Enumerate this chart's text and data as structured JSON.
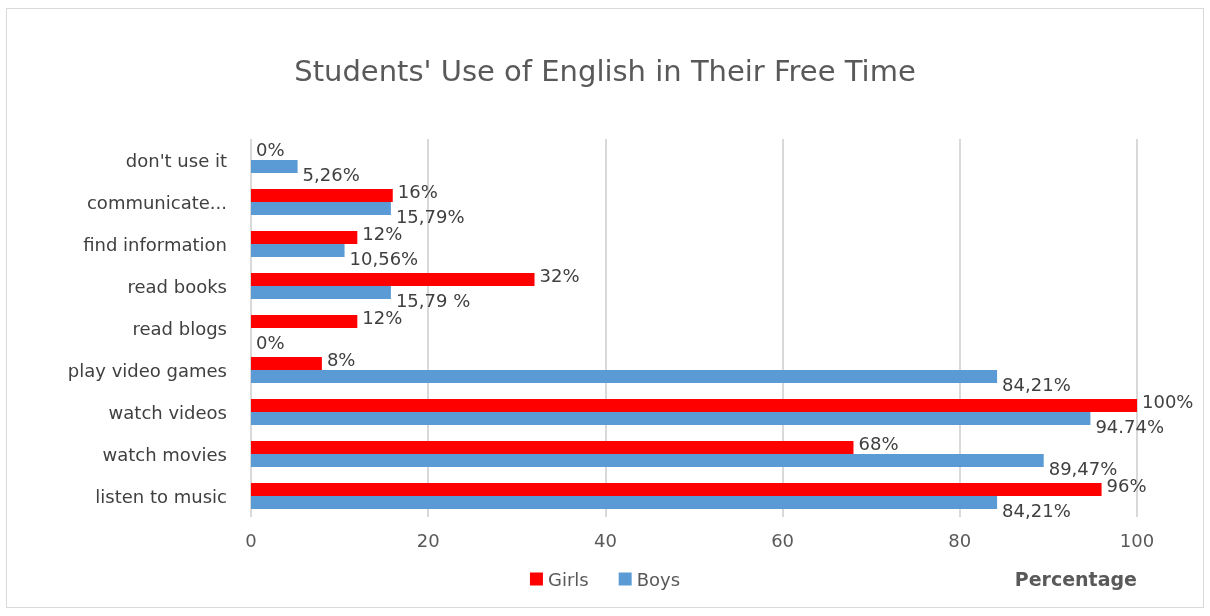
{
  "chart_data": {
    "type": "bar",
    "orientation": "horizontal",
    "title": "Students' Use of English in Their Free Time",
    "xlabel": "Percentage",
    "categories": [
      "don't use it",
      "communicate...",
      "find information",
      "read books",
      "read blogs",
      "play video games",
      "watch videos",
      "watch movies",
      "listen to music"
    ],
    "series": [
      {
        "name": "Girls",
        "color": "#ff0000",
        "values": [
          0,
          16,
          12,
          32,
          12,
          8,
          100,
          68,
          96
        ],
        "value_labels": [
          "0%",
          "16%",
          "12%",
          "32%",
          "12%",
          "8%",
          "100%",
          "68%",
          "96%"
        ]
      },
      {
        "name": "Boys",
        "color": "#5b9bd5",
        "values": [
          5.26,
          15.79,
          10.56,
          15.79,
          0,
          84.21,
          94.74,
          89.47,
          84.21
        ],
        "value_labels": [
          "5,26%",
          "15,79%",
          "10,56%",
          "15,79 %",
          "0%",
          "84,21%",
          "94.74%",
          "89,47%",
          "84,21%"
        ]
      }
    ],
    "xlim": [
      0,
      100
    ],
    "xticks": [
      0,
      20,
      40,
      60,
      80,
      100
    ],
    "grid": "x",
    "legend": "bottom"
  }
}
